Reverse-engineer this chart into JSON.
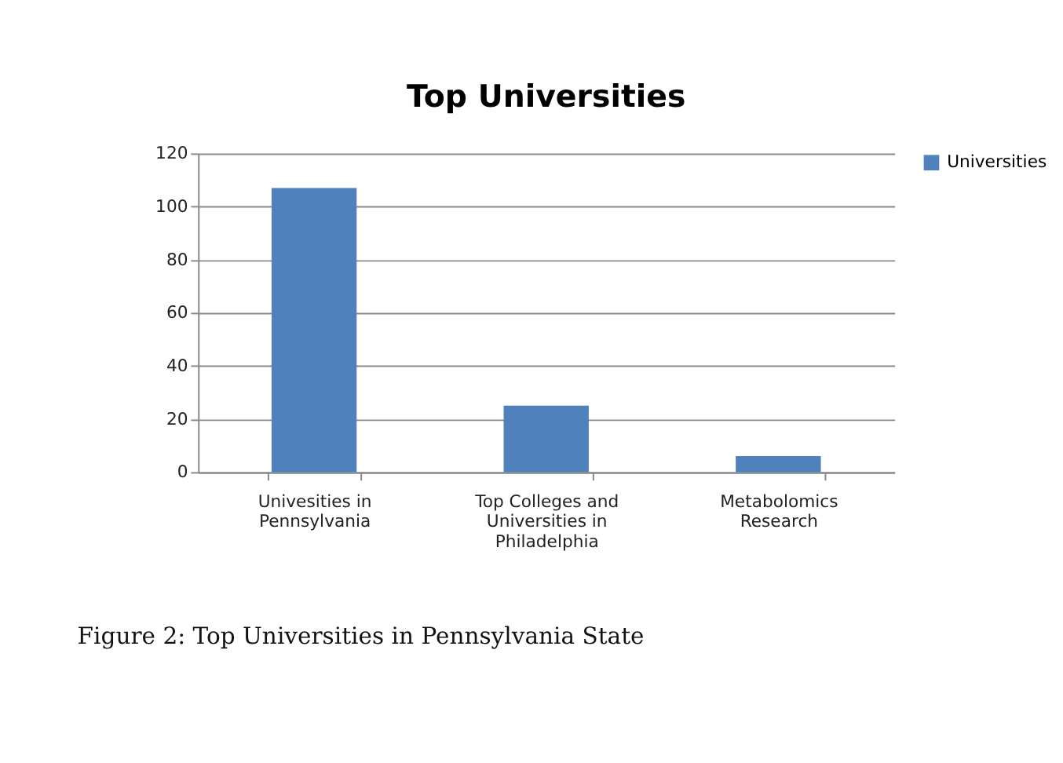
{
  "chart_data": {
    "type": "bar",
    "title": "Top Universities",
    "categories": [
      "Univesities in Pennsylvania",
      "Top Colleges and Universities in Philadelphia",
      "Metabolomics Research"
    ],
    "series": [
      {
        "name": "Universities",
        "color": "#4f81bd",
        "values": [
          107,
          25,
          6
        ]
      }
    ],
    "ylim": [
      0,
      120
    ],
    "yticks": [
      0,
      20,
      40,
      60,
      80,
      100,
      120
    ],
    "grid": "y",
    "legend": "right",
    "annotations": [
      "Figure 2: Top Universities in Pennsylvania State"
    ]
  }
}
